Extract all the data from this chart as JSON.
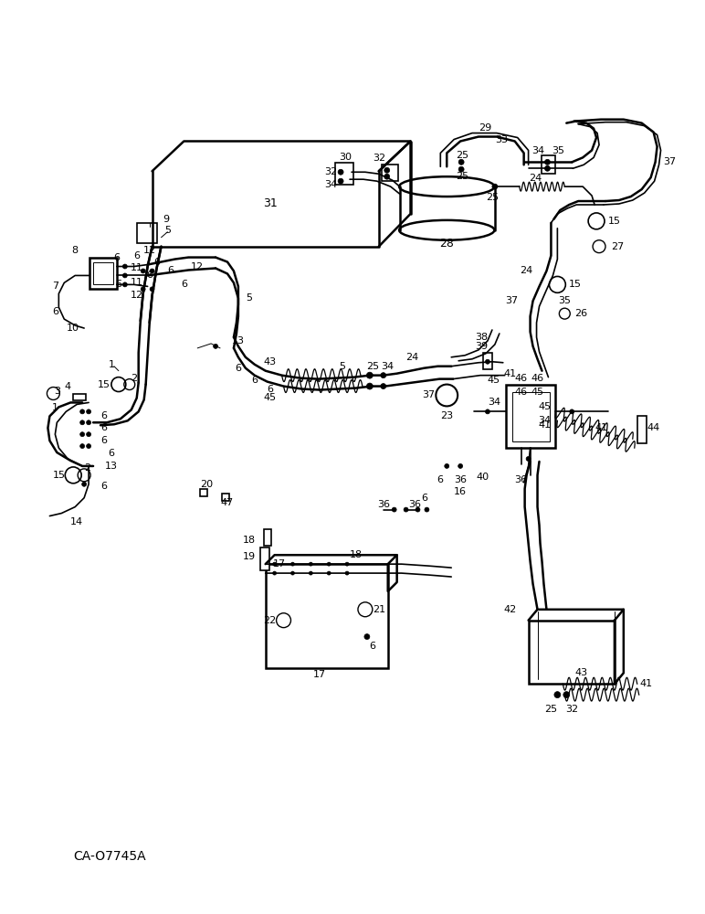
{
  "bg_color": "#ffffff",
  "line_color": "#000000",
  "fig_width": 7.72,
  "fig_height": 10.0,
  "dpi": 100,
  "watermark": "CA-O7745A"
}
